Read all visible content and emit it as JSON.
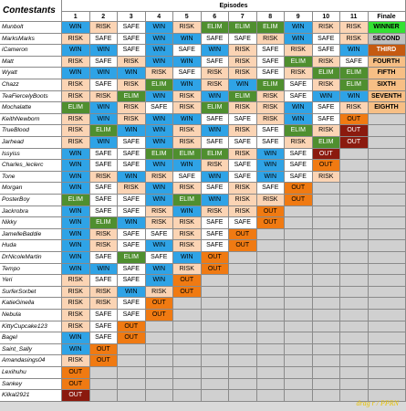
{
  "header": {
    "contestants_label": "Contestants",
    "episodes_label": "Episodes",
    "columns": [
      "1",
      "2",
      "3",
      "4",
      "5",
      "6",
      "7",
      "8",
      "9",
      "10",
      "11",
      "Finale"
    ]
  },
  "status_colors": {
    "WIN": "#2fa3e6",
    "RISK": "#fbd4b4",
    "SAFE": "#ffffff",
    "ELIM": "#4f8f2f",
    "OUT": "#f07a12",
    "OUT_DARK": "#8b1a0e",
    "WINNER": "#33e133",
    "SECOND": "#c0c0c0",
    "THIRD": "#c55a11",
    "FOURTH": "#f7bf85",
    "FIFTH": "#f7bf85",
    "SIXTH": "#f7bf85",
    "SEVENTH": "#f7bf85",
    "EIGHTH": "#f7bf85"
  },
  "rows": [
    {
      "name": "Munbolt",
      "results": [
        "WIN",
        "RISK",
        "SAFE",
        "WIN",
        "RISK",
        "ELIM",
        "ELIM",
        "ELIM",
        "WIN",
        "RISK",
        "RISK",
        "WINNER"
      ]
    },
    {
      "name": "MarksMarks",
      "results": [
        "RISK",
        "SAFE",
        "SAFE",
        "WIN",
        "WIN",
        "SAFE",
        "SAFE",
        "RISK",
        "WIN",
        "SAFE",
        "RISK",
        "SECOND"
      ]
    },
    {
      "name": "iCameron",
      "results": [
        "WIN",
        "WIN",
        "SAFE",
        "WIN",
        "SAFE",
        "WIN",
        "RISK",
        "SAFE",
        "RISK",
        "SAFE",
        "WIN",
        "THIRD"
      ]
    },
    {
      "name": "Matt",
      "results": [
        "RISK",
        "SAFE",
        "RISK",
        "WIN",
        "WIN",
        "SAFE",
        "RISK",
        "SAFE",
        "ELIM",
        "RISK",
        "SAFE",
        "FOURTH"
      ]
    },
    {
      "name": "Wyatt",
      "results": [
        "WIN",
        "WIN",
        "WIN",
        "RISK",
        "SAFE",
        "RISK",
        "RISK",
        "SAFE",
        "RISK",
        "ELIM",
        "ELIM",
        "FIFTH"
      ]
    },
    {
      "name": "Chazz",
      "results": [
        "RISK",
        "SAFE",
        "RISK",
        "ELIM",
        "WIN",
        "RISK",
        "WIN",
        "ELIM",
        "SAFE",
        "RISK",
        "ELIM",
        "SIXTH"
      ]
    },
    {
      "name": "TeaFiercelyBoots",
      "results": [
        "RISK",
        "RISK",
        "ELIM",
        "WIN",
        "RISK",
        "WIN",
        "ELIM",
        "RISK",
        "SAFE",
        "WIN",
        "WIN",
        "SEVENTH"
      ]
    },
    {
      "name": "Mochalatte",
      "results": [
        "ELIM",
        "WIN",
        "RISK",
        "SAFE",
        "RISK",
        "ELIM",
        "RISK",
        "RISK",
        "WIN",
        "SAFE",
        "RISK",
        "EIGHTH"
      ]
    },
    {
      "name": "KeithNewborn",
      "results": [
        "RISK",
        "WIN",
        "RISK",
        "WIN",
        "WIN",
        "SAFE",
        "SAFE",
        "RISK",
        "WIN",
        "SAFE",
        "OUT",
        ""
      ]
    },
    {
      "name": "TrueBlood",
      "results": [
        "RISK",
        "ELIM",
        "WIN",
        "WIN",
        "RISK",
        "WIN",
        "RISK",
        "SAFE",
        "ELIM",
        "RISK",
        "OUT_DARK",
        ""
      ]
    },
    {
      "name": "Jarhead",
      "results": [
        "RISK",
        "WIN",
        "SAFE",
        "WIN",
        "RISK",
        "SAFE",
        "SAFE",
        "SAFE",
        "RISK",
        "ELIM",
        "OUT_DARK",
        ""
      ]
    },
    {
      "name": "Issyiss",
      "results": [
        "WIN",
        "SAFE",
        "SAFE",
        "ELIM",
        "ELIM",
        "ELIM",
        "RISK",
        "WIN",
        "SAFE",
        "OUT_DARK",
        "",
        ""
      ]
    },
    {
      "name": "Charles_leclerc",
      "results": [
        "WIN",
        "SAFE",
        "SAFE",
        "WIN",
        "WIN",
        "RISK",
        "SAFE",
        "WIN",
        "SAFE",
        "OUT",
        "",
        ""
      ]
    },
    {
      "name": "Tone",
      "results": [
        "WIN",
        "RISK",
        "WIN",
        "RISK",
        "SAFE",
        "WIN",
        "SAFE",
        "WIN",
        "SAFE",
        "RISK",
        "",
        ""
      ]
    },
    {
      "name": "Morgan",
      "results": [
        "WIN",
        "SAFE",
        "RISK",
        "WIN",
        "RISK",
        "SAFE",
        "RISK",
        "SAFE",
        "OUT",
        "",
        "",
        ""
      ]
    },
    {
      "name": "PosterBoy",
      "results": [
        "ELIM",
        "SAFE",
        "SAFE",
        "WIN",
        "ELIM",
        "WIN",
        "RISK",
        "RISK",
        "OUT",
        "",
        "",
        ""
      ]
    },
    {
      "name": "Jackrobra",
      "results": [
        "WIN",
        "SAFE",
        "SAFE",
        "RISK",
        "WIN",
        "RISK",
        "RISK",
        "OUT",
        "",
        "",
        "",
        ""
      ]
    },
    {
      "name": "Nikky",
      "results": [
        "WIN",
        "ELIM",
        "WIN",
        "RISK",
        "RISK",
        "SAFE",
        "SAFE",
        "OUT",
        "",
        "",
        "",
        ""
      ]
    },
    {
      "name": "JamelleBaddie",
      "results": [
        "WIN",
        "RISK",
        "SAFE",
        "SAFE",
        "RISK",
        "SAFE",
        "OUT",
        "",
        "",
        "",
        "",
        ""
      ]
    },
    {
      "name": "Huda",
      "results": [
        "WIN",
        "RISK",
        "SAFE",
        "WIN",
        "RISK",
        "SAFE",
        "OUT",
        "",
        "",
        "",
        "",
        ""
      ]
    },
    {
      "name": "DrNicoleMartin",
      "results": [
        "WIN",
        "SAFE",
        "ELIM",
        "SAFE",
        "WIN",
        "OUT",
        "",
        "",
        "",
        "",
        "",
        ""
      ]
    },
    {
      "name": "Tempo",
      "results": [
        "WIN",
        "WIN",
        "SAFE",
        "WIN",
        "RISK",
        "OUT",
        "",
        "",
        "",
        "",
        "",
        ""
      ]
    },
    {
      "name": "Yeri",
      "results": [
        "RISK",
        "SAFE",
        "SAFE",
        "WIN",
        "OUT",
        "",
        "",
        "",
        "",
        "",
        "",
        ""
      ]
    },
    {
      "name": "SurferSorbet",
      "results": [
        "RISK",
        "RISK",
        "WIN",
        "RISK",
        "OUT",
        "",
        "",
        "",
        "",
        "",
        "",
        ""
      ]
    },
    {
      "name": "KatieGinella",
      "results": [
        "RISK",
        "RISK",
        "SAFE",
        "OUT",
        "",
        "",
        "",
        "",
        "",
        "",
        "",
        ""
      ]
    },
    {
      "name": "Nebula",
      "results": [
        "RISK",
        "SAFE",
        "SAFE",
        "OUT",
        "",
        "",
        "",
        "",
        "",
        "",
        "",
        ""
      ]
    },
    {
      "name": "KittyCupcake123",
      "results": [
        "RISK",
        "SAFE",
        "OUT",
        "",
        "",
        "",
        "",
        "",
        "",
        "",
        "",
        ""
      ]
    },
    {
      "name": "Bagel",
      "results": [
        "WIN",
        "SAFE",
        "OUT",
        "",
        "",
        "",
        "",
        "",
        "",
        "",
        "",
        ""
      ]
    },
    {
      "name": "Saint_Sally",
      "results": [
        "WIN",
        "OUT",
        "",
        "",
        "",
        "",
        "",
        "",
        "",
        "",
        "",
        ""
      ]
    },
    {
      "name": "Amandasings04",
      "results": [
        "RISK",
        "OUT",
        "",
        "",
        "",
        "",
        "",
        "",
        "",
        "",
        "",
        ""
      ]
    },
    {
      "name": "Lexihuhu",
      "results": [
        "OUT",
        "",
        "",
        "",
        "",
        "",
        "",
        "",
        "",
        "",
        "",
        ""
      ]
    },
    {
      "name": "Sankey",
      "results": [
        "OUT",
        "",
        "",
        "",
        "",
        "",
        "",
        "",
        "",
        "",
        "",
        ""
      ]
    },
    {
      "name": "Kilkal2921",
      "results": [
        "OUT_DARK",
        "",
        "",
        "",
        "",
        "",
        "",
        "",
        "",
        "",
        "",
        ""
      ]
    }
  ],
  "watermark": "drag r / PPRN"
}
